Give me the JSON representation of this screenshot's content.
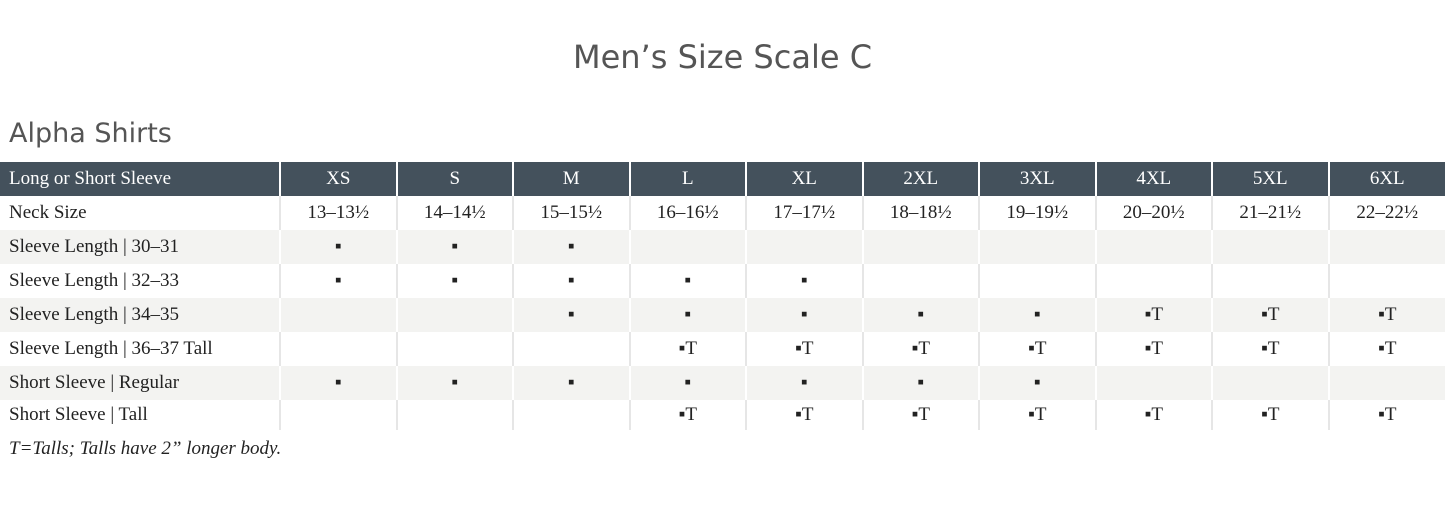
{
  "header": {
    "title": "Men’s Size Scale C",
    "subtitle": "Alpha Shirts"
  },
  "table": {
    "columns": [
      "Long or Short Sleeve",
      "XS",
      "S",
      "M",
      "L",
      "XL",
      "2XL",
      "3XL",
      "4XL",
      "5XL",
      "6XL"
    ],
    "rows": [
      [
        "Neck Size",
        "13–13½",
        "14–14½",
        "15–15½",
        "16–16½",
        "17–17½",
        "18–18½",
        "19–19½",
        "20–20½",
        "21–21½",
        "22–22½"
      ],
      [
        "Sleeve Length | 30–31",
        "▪",
        "▪",
        "▪",
        null,
        null,
        null,
        null,
        null,
        null,
        null
      ],
      [
        "Sleeve Length | 32–33",
        "▪",
        "▪",
        "▪",
        "▪",
        "▪",
        null,
        null,
        null,
        null,
        null
      ],
      [
        "Sleeve Length | 34–35",
        null,
        null,
        "▪",
        "▪",
        "▪",
        "▪",
        "▪",
        "▪T",
        "▪T",
        "▪T"
      ],
      [
        "Sleeve Length | 36–37 Tall",
        null,
        null,
        null,
        "▪T",
        "▪T",
        "▪T",
        "▪T",
        "▪T",
        "▪T",
        "▪T"
      ],
      [
        "Short Sleeve | Regular",
        "▪",
        "▪",
        "▪",
        "▪",
        "▪",
        "▪",
        "▪",
        null,
        null,
        null
      ],
      [
        "Short Sleeve | Tall",
        null,
        null,
        null,
        "▪T",
        "▪T",
        "▪T",
        "▪T",
        "▪T",
        "▪T",
        "▪T"
      ]
    ]
  },
  "footnote": "T=Talls; Talls have 2” longer body."
}
